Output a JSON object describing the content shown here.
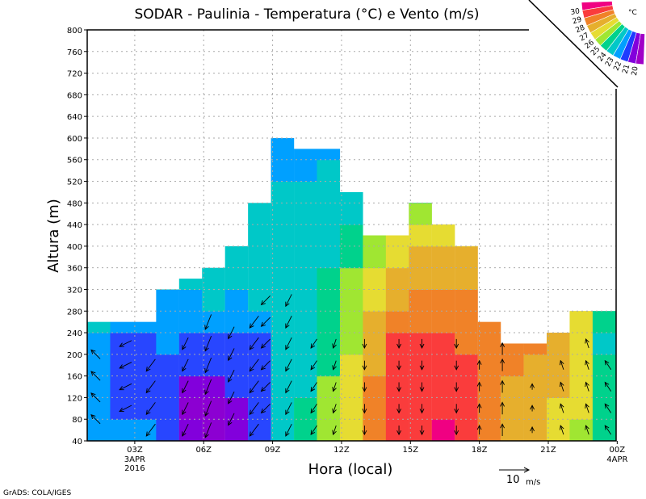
{
  "chart_data": {
    "type": "heatmap",
    "title": "SODAR - Paulinia - Temperatura (°C) e Vento (m/s)",
    "xlabel": "Hora (local)",
    "ylabel": "Altura (m)",
    "footer": "GrADS: COLA/IGES",
    "xlim_hours": [
      0.93,
      24
    ],
    "ylim": [
      40,
      800
    ],
    "y_ticks": [
      "40",
      "80",
      "120",
      "160",
      "200",
      "240",
      "280",
      "320",
      "360",
      "400",
      "440",
      "480",
      "520",
      "560",
      "600",
      "640",
      "680",
      "720",
      "760",
      "800"
    ],
    "x_ticks": [
      {
        "hour": 3,
        "label": "03Z",
        "sub1": "3APR",
        "sub2": "2016"
      },
      {
        "hour": 6,
        "label": "06Z"
      },
      {
        "hour": 9,
        "label": "09Z"
      },
      {
        "hour": 12,
        "label": "12Z"
      },
      {
        "hour": 15,
        "label": "15Z"
      },
      {
        "hour": 18,
        "label": "18Z"
      },
      {
        "hour": 21,
        "label": "21Z"
      },
      {
        "hour": 24,
        "label": "00Z",
        "sub1": "4APR"
      }
    ],
    "grid": true,
    "legend": {
      "unit": "°C",
      "placement": "top-right",
      "labels": [
        "30",
        "29",
        "28",
        "27",
        "26",
        "25",
        "24",
        "23",
        "22",
        "21",
        "20"
      ],
      "colors": [
        "#f00082",
        "#fa3c3c",
        "#f08228",
        "#e6af2d",
        "#e6dc32",
        "#a0e632",
        "#00d28c",
        "#00c8c8",
        "#00a0ff",
        "#1e3cff",
        "#8200dc",
        "#a000c8"
      ]
    },
    "color_bins": [
      {
        "max": 21,
        "color": "#8c00d2"
      },
      {
        "max": 22,
        "color": "#8200dc"
      },
      {
        "max": 23,
        "color": "#2846ff"
      },
      {
        "max": 24,
        "color": "#00a0ff"
      },
      {
        "max": 25,
        "color": "#00c8c8"
      },
      {
        "max": 26,
        "color": "#00d28c"
      },
      {
        "max": 27,
        "color": "#a0e632"
      },
      {
        "max": 28,
        "color": "#e6dc32"
      },
      {
        "max": 29,
        "color": "#e6af2d"
      },
      {
        "max": 30,
        "color": "#f08228"
      },
      {
        "max": 31,
        "color": "#fa3c3c"
      },
      {
        "max": 99,
        "color": "#f00082"
      }
    ],
    "level_step_m": 40,
    "temperature_columns": [
      {
        "top": 260,
        "t": [
          23.5,
          23.5,
          23.5,
          23.5,
          23.5,
          24.5
        ]
      },
      {
        "top": 260,
        "t": [
          23.5,
          22.5,
          22.5,
          22.5,
          22.5,
          23.5
        ]
      },
      {
        "top": 260,
        "t": [
          23.5,
          22.5,
          22.5,
          22.5,
          22.5,
          23.5
        ]
      },
      {
        "top": 320,
        "t": [
          22.5,
          22.5,
          22.5,
          22.5,
          23.5,
          23.5,
          23.5,
          24.5
        ]
      },
      {
        "top": 340,
        "t": [
          21.5,
          20.5,
          21.5,
          22.5,
          22.5,
          23.5,
          23.5,
          24.5
        ]
      },
      {
        "top": 360,
        "t": [
          20.5,
          20.5,
          21.5,
          22.5,
          22.5,
          23.5,
          24.5,
          24.5
        ]
      },
      {
        "top": 400,
        "t": [
          21.5,
          21.5,
          22.5,
          22.5,
          22.5,
          23.5,
          23.5,
          24.5,
          24.5
        ]
      },
      {
        "top": 480,
        "t": [
          22.5,
          22.5,
          22.5,
          22.5,
          22.5,
          23.5,
          24.5,
          24.5,
          24.5,
          24.5,
          24.5
        ]
      },
      {
        "top": 600,
        "t": [
          24.5,
          24.5,
          24.5,
          24.5,
          24.5,
          24.5,
          24.5,
          24.5,
          24.5,
          24.5,
          24.5,
          24.5,
          23.5,
          23.5
        ]
      },
      {
        "top": 580,
        "t": [
          25.5,
          25.5,
          24.5,
          24.5,
          24.5,
          24.5,
          24.5,
          24.5,
          24.5,
          24.5,
          24.5,
          24.5,
          23.5,
          23.5
        ]
      },
      {
        "top": 580,
        "t": [
          26.5,
          26.5,
          26.5,
          25.5,
          25.5,
          25.5,
          25.5,
          25.5,
          24.5,
          24.5,
          24.5,
          24.5,
          24.5,
          23.5
        ]
      },
      {
        "top": 500,
        "t": [
          27.5,
          27.5,
          27.5,
          27.5,
          26.5,
          26.5,
          26.5,
          26.5,
          25.5,
          25.5,
          24.5,
          24.5
        ]
      },
      {
        "top": 420,
        "t": [
          29.5,
          29.5,
          29.5,
          28.5,
          28.5,
          28.5,
          27.5,
          27.5,
          26.5,
          26.5
        ]
      },
      {
        "top": 420,
        "t": [
          30.5,
          30.5,
          30.5,
          30.5,
          30.5,
          29.5,
          28.5,
          28.5,
          27.5,
          27.5
        ]
      },
      {
        "top": 480,
        "t": [
          30.5,
          30.5,
          30.5,
          30.5,
          30.5,
          29.5,
          29.5,
          28.5,
          28.5,
          27.5,
          26.5,
          25.5
        ]
      },
      {
        "top": 440,
        "t": [
          31.5,
          30.5,
          30.5,
          30.5,
          30.5,
          29.5,
          29.5,
          28.5,
          28.5,
          27.5,
          27.5
        ]
      },
      {
        "top": 400,
        "t": [
          30.5,
          30.5,
          30.5,
          30.5,
          29.5,
          29.5,
          29.5,
          28.5,
          28.5,
          27.5
        ]
      },
      {
        "top": 260,
        "t": [
          29.5,
          29.5,
          29.5,
          29.5,
          29.5,
          29.5
        ]
      },
      {
        "top": 220,
        "t": [
          28.5,
          28.5,
          28.5,
          29.5,
          29.5
        ]
      },
      {
        "top": 220,
        "t": [
          28.5,
          28.5,
          28.5,
          28.5,
          29.5
        ]
      },
      {
        "top": 240,
        "t": [
          27.5,
          27.5,
          28.5,
          28.5,
          28.5,
          28.5
        ]
      },
      {
        "top": 280,
        "t": [
          26.5,
          27.5,
          27.5,
          27.5,
          27.5,
          27.5,
          27.5
        ]
      },
      {
        "top": 280,
        "t": [
          25.5,
          25.5,
          25.5,
          25.5,
          24.5,
          25.5,
          25.5
        ]
      }
    ],
    "wind_reference": {
      "speed": 10,
      "label": "10",
      "unit": "m/s"
    },
    "wind_columns": [
      {
        "hour": 1.3,
        "u": -3,
        "v": 3,
        "heights": [
          80,
          120,
          160,
          200
        ]
      },
      {
        "hour": 2.6,
        "u": -4,
        "v": -2,
        "heights": [
          100,
          140,
          180,
          220
        ]
      },
      {
        "hour": 3.7,
        "u": -3,
        "v": -4,
        "heights": [
          60,
          100,
          140,
          180
        ]
      },
      {
        "hour": 5.2,
        "u": -2,
        "v": -4,
        "heights": [
          60,
          100,
          140,
          180,
          220
        ]
      },
      {
        "hour": 6.2,
        "u": -2,
        "v": -5,
        "heights": [
          60,
          100,
          140,
          180,
          220,
          260
        ]
      },
      {
        "hour": 7.2,
        "u": -2,
        "v": -4,
        "heights": [
          80,
          120,
          160,
          200,
          240
        ]
      },
      {
        "hour": 8.2,
        "u": -3,
        "v": -4,
        "heights": [
          60,
          100,
          140,
          180,
          220,
          260
        ]
      },
      {
        "hour": 8.7,
        "u": -3,
        "v": -3,
        "heights": [
          100,
          140,
          180,
          220,
          260,
          300
        ]
      },
      {
        "hour": 9.7,
        "u": -2,
        "v": -4,
        "heights": [
          60,
          100,
          140,
          180,
          220,
          260,
          300
        ]
      },
      {
        "hour": 10.8,
        "u": -2,
        "v": -3,
        "heights": [
          60,
          100,
          140,
          180,
          220
        ]
      },
      {
        "hour": 11.7,
        "u": -1,
        "v": -3,
        "heights": [
          60,
          100,
          140,
          180,
          220
        ]
      },
      {
        "hour": 13.0,
        "u": 0,
        "v": -3,
        "heights": [
          60,
          100,
          140,
          180,
          220
        ]
      },
      {
        "hour": 14.5,
        "u": 0,
        "v": -3,
        "heights": [
          60,
          100,
          140,
          180,
          220
        ]
      },
      {
        "hour": 15.5,
        "u": 0,
        "v": -3,
        "heights": [
          60,
          100,
          140,
          180,
          220
        ]
      },
      {
        "hour": 17.0,
        "u": 0,
        "v": -3,
        "heights": [
          60,
          100,
          140,
          180,
          220
        ]
      },
      {
        "hour": 18.0,
        "u": 0,
        "v": 3,
        "heights": [
          60,
          100,
          140,
          180
        ]
      },
      {
        "hour": 19.0,
        "u": 0,
        "v": 4,
        "heights": [
          60,
          100,
          140,
          180,
          210
        ]
      },
      {
        "hour": 20.3,
        "u": 0,
        "v": 2,
        "heights": [
          60,
          100,
          140
        ]
      },
      {
        "hour": 21.6,
        "u": -1,
        "v": 3,
        "heights": [
          60,
          100,
          140,
          180
        ]
      },
      {
        "hour": 22.7,
        "u": -1,
        "v": 3,
        "heights": [
          60,
          100,
          140,
          180,
          220
        ]
      },
      {
        "hour": 23.6,
        "u": -2,
        "v": 3,
        "heights": [
          60,
          100,
          140,
          180
        ]
      }
    ]
  }
}
